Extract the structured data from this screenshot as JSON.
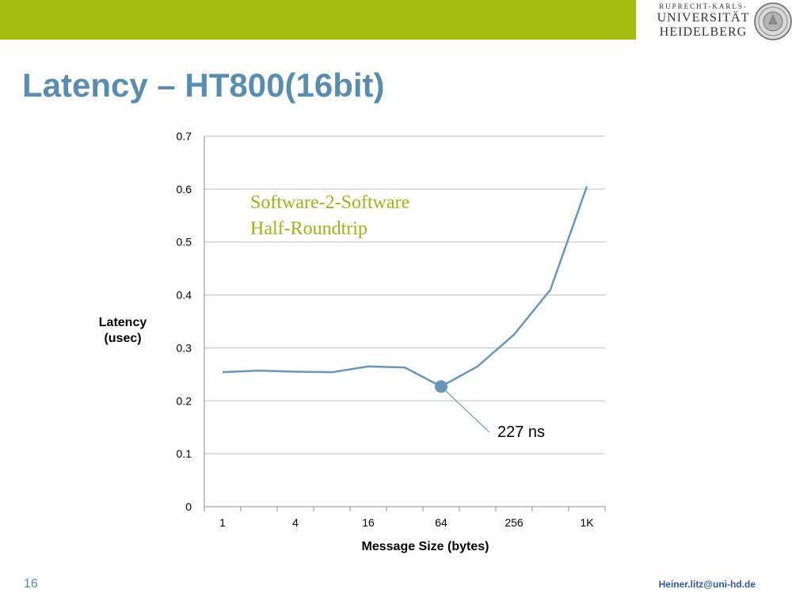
{
  "slide": {
    "title": "Latency – HT800(16bit)",
    "page_number": "16",
    "footer_email": "Heiner.litz@uni-hd.de",
    "accent_color": "#a3bd0f",
    "title_color": "#5a8cad"
  },
  "logo": {
    "line1": "RUPRECHT-KARLS-",
    "line2": "UNIVERSITÄT",
    "line3": "HEIDELBERG"
  },
  "chart_data": {
    "type": "line",
    "title": "",
    "xlabel": "Message Size (bytes)",
    "ylabel_lines": [
      "Latency",
      "(usec)"
    ],
    "x_tick_labels": [
      "1",
      "",
      "4",
      "",
      "16",
      "",
      "64",
      "",
      "256",
      "",
      "1K"
    ],
    "y_ticks": [
      0,
      0.1,
      0.2,
      0.3,
      0.4,
      0.5,
      0.6,
      0.7
    ],
    "ylim": [
      0,
      0.7
    ],
    "grid": true,
    "series": [
      {
        "color": "#6a97b7",
        "values": [
          0.254,
          0.257,
          0.255,
          0.254,
          0.265,
          0.263,
          0.227,
          0.265,
          0.325,
          0.41,
          0.605
        ]
      }
    ],
    "inset_text": [
      "Software-2-Software",
      "Half-Roundtrip"
    ],
    "inset_color": "#9ab51c",
    "highlight": {
      "index": 6,
      "label": "227 ns"
    }
  }
}
